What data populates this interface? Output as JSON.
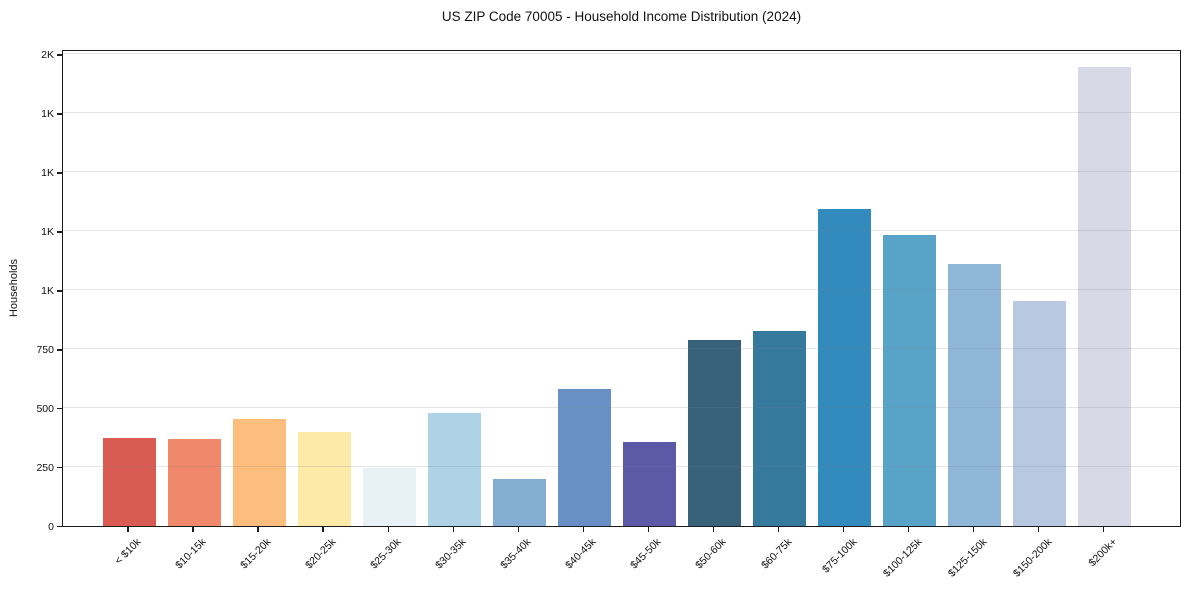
{
  "title": "US ZIP Code 70005 - Household Income Distribution (2024)",
  "ylabel": "Households",
  "chart_data": {
    "type": "bar",
    "title": "US ZIP Code 70005 - Household Income Distribution (2024)",
    "xlabel": "",
    "ylabel": "Households",
    "ylim": [
      0,
      2000
    ],
    "yticks": [
      0,
      250,
      500,
      750,
      1000,
      1250,
      1500,
      1750,
      2000
    ],
    "ytick_labels": [
      "0",
      "250",
      "500",
      "750",
      "1K",
      "1K",
      "1K",
      "1K",
      "2K"
    ],
    "grid": "horizontal",
    "grid_on_top_of_bars": true,
    "legend": "none",
    "categories": [
      "< $10k",
      "$10-15k",
      "$15-20k",
      "$20-25k",
      "$25-30k",
      "$30-35k",
      "$35-40k",
      "$40-45k",
      "$45-50k",
      "$50-60k",
      "$60-75k",
      "$75-100k",
      "$100-125k",
      "$125-150k",
      "$150-200k",
      "$200k+"
    ],
    "values": [
      375,
      370,
      455,
      400,
      245,
      480,
      200,
      580,
      355,
      790,
      825,
      1345,
      1235,
      1110,
      955,
      1945
    ],
    "bar_colors": [
      "#d95b52",
      "#f0886b",
      "#fcbd7d",
      "#fdeaa9",
      "#e8f1f6",
      "#aed3e6",
      "#83aed2",
      "#6990c5",
      "#5c5aa7",
      "#38617a",
      "#35799d",
      "#338abd",
      "#5aa3c8",
      "#90b7d8",
      "#b9c8e1",
      "#d7d9e7"
    ],
    "axis_color": "#1c1c1c",
    "gridline_color": "#e9e9e9",
    "background_color": "#ffffff"
  }
}
